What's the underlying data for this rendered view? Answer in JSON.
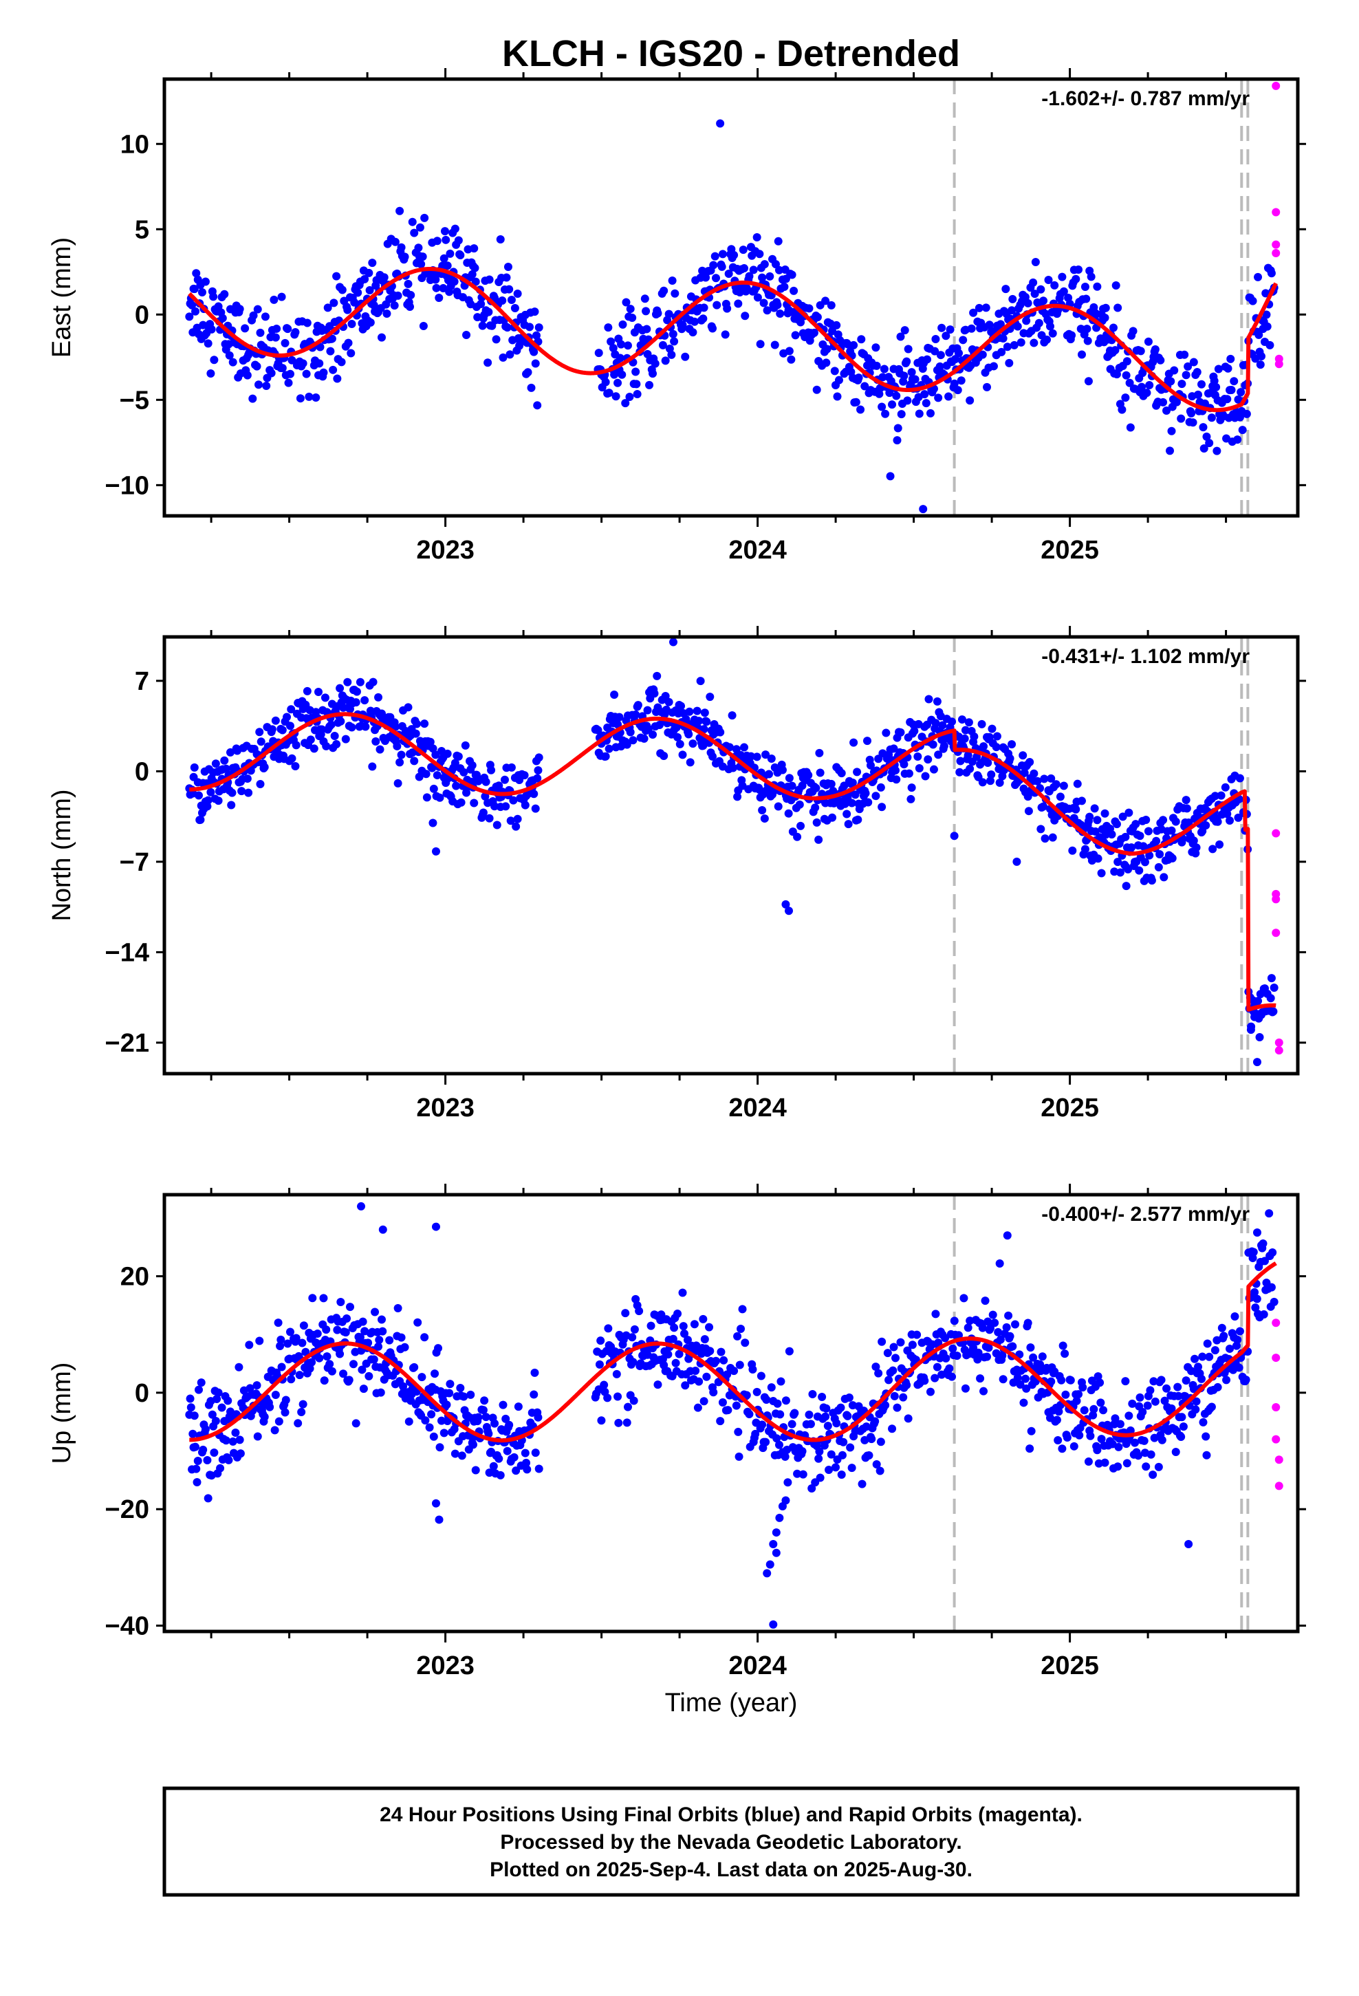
{
  "title": "KLCH - IGS20 - Detrended",
  "xlabel": "Time (year)",
  "colors": {
    "final": "#0000ff",
    "rapid": "#ff00ff",
    "model": "#ff0000",
    "steps": "#bbbbbb"
  },
  "footer": {
    "line1": "24 Hour Positions Using Final Orbits (blue) and Rapid Orbits (magenta).",
    "line2": "Processed by the Nevada Geodetic Laboratory.",
    "line3": "Plotted on 2025-Sep-4. Last data on 2025-Aug-30."
  },
  "chart_data": [
    {
      "type": "scatter",
      "ylabel": "East (mm)",
      "rate_text": "-1.602+/- 0.787 mm/yr",
      "xlim": [
        2022.1,
        2025.73
      ],
      "ylim": [
        -11.8,
        13.8
      ],
      "yticks": [
        -10,
        -5,
        0,
        5,
        10
      ],
      "ytick_labels": [
        "−10",
        "−5",
        "0",
        "5",
        "10"
      ],
      "xticks": [
        2023,
        2024,
        2025
      ],
      "xtick_labels": [
        "2023",
        "2024",
        "2025"
      ],
      "step_epochs": [
        2024.63,
        2025.55,
        2025.57
      ],
      "model": {
        "amp": 2.8,
        "period_peak": 2022.96,
        "base": [
          [
            2022.18,
            0.7
          ],
          [
            2023.4,
            -0.6
          ],
          [
            2024.25,
            -1.1
          ],
          [
            2024.63,
            -2.0
          ],
          [
            2025.3,
            -2.6
          ],
          [
            2025.55,
            -2.9
          ],
          [
            2025.66,
            -0.5
          ]
        ],
        "steps": [
          [
            2025.57,
            3.2
          ]
        ]
      },
      "noise_sd": 1.3,
      "gaps": [
        [
          2023.3,
          2023.48
        ]
      ],
      "outliers": [
        [
          2023.88,
          11.2
        ],
        [
          2024.53,
          -11.4
        ],
        [
          2025.13,
          -3.2
        ]
      ],
      "rapid": [
        [
          2025.66,
          13.4
        ],
        [
          2025.66,
          6.0
        ],
        [
          2025.66,
          4.1
        ],
        [
          2025.66,
          3.6
        ],
        [
          2025.67,
          -2.6
        ],
        [
          2025.67,
          -2.9
        ]
      ]
    },
    {
      "type": "scatter",
      "ylabel": "North (mm)",
      "rate_text": "-0.431+/- 1.102 mm/yr",
      "xlim": [
        2022.1,
        2025.73
      ],
      "ylim": [
        -23.4,
        10.4
      ],
      "yticks": [
        -21,
        -14,
        -7,
        0,
        7
      ],
      "ytick_labels": [
        "−21",
        "−14",
        "−7",
        "0",
        "7"
      ],
      "xticks": [
        2023,
        2024,
        2025
      ],
      "xtick_labels": [
        "2023",
        "2024",
        "2025"
      ],
      "step_epochs": [
        2024.63,
        2025.55,
        2025.57
      ],
      "model": {
        "amp": 3.0,
        "period_peak": 2022.68,
        "base": [
          [
            2022.18,
            1.6
          ],
          [
            2023.3,
            1.2
          ],
          [
            2024.2,
            0.9
          ],
          [
            2024.63,
            0.3
          ],
          [
            2025.2,
            -1.9
          ],
          [
            2025.55,
            -2.2
          ],
          [
            2025.66,
            -2.6
          ]
        ],
        "steps": [
          [
            2024.63,
            -1.5
          ],
          [
            2025.56,
            -3.0
          ],
          [
            2025.57,
            -14.0
          ]
        ]
      },
      "noise_sd": 1.2,
      "gaps": [
        [
          2023.3,
          2023.48
        ]
      ],
      "outliers": [
        [
          2023.73,
          10.0
        ],
        [
          2022.97,
          -6.2
        ],
        [
          2022.96,
          -4.0
        ],
        [
          2024.1,
          -10.8
        ],
        [
          2024.09,
          -10.3
        ],
        [
          2024.63,
          -5.0
        ],
        [
          2024.83,
          -7.0
        ],
        [
          2025.18,
          -7.4
        ],
        [
          2025.58,
          -20.0
        ],
        [
          2025.6,
          -22.5
        ]
      ],
      "rapid": [
        [
          2025.66,
          -4.8
        ],
        [
          2025.66,
          -9.5
        ],
        [
          2025.66,
          -9.9
        ],
        [
          2025.66,
          -12.5
        ],
        [
          2025.67,
          -21.0
        ],
        [
          2025.67,
          -21.6
        ]
      ]
    },
    {
      "type": "scatter",
      "ylabel": "Up (mm)",
      "rate_text": "-0.400+/- 2.577 mm/yr",
      "xlim": [
        2022.1,
        2025.73
      ],
      "ylim": [
        -41,
        34
      ],
      "yticks": [
        -40,
        -20,
        0,
        20
      ],
      "ytick_labels": [
        "−40",
        "−20",
        "0",
        "20"
      ],
      "xticks": [
        2023,
        2024,
        2025
      ],
      "xtick_labels": [
        "2023",
        "2024",
        "2025"
      ],
      "step_epochs": [
        2024.63,
        2025.55,
        2025.57
      ],
      "model": {
        "amp": 8.3,
        "period_peak": 2022.68,
        "base": [
          [
            2022.18,
            0.2
          ],
          [
            2023.3,
            0.1
          ],
          [
            2024.3,
            0.2
          ],
          [
            2024.63,
            1.0
          ],
          [
            2025.2,
            1.0
          ],
          [
            2025.55,
            1.2
          ],
          [
            2025.66,
            4.0
          ]
        ],
        "steps": [
          [
            2025.57,
            10.0
          ]
        ]
      },
      "noise_sd": 4.0,
      "gaps": [
        [
          2023.3,
          2023.48
        ]
      ],
      "outliers": [
        [
          2022.73,
          32.0
        ],
        [
          2022.8,
          28.0
        ],
        [
          2022.97,
          28.5
        ],
        [
          2022.98,
          -21.8
        ],
        [
          2022.97,
          -19.0
        ],
        [
          2024.03,
          -31.0
        ],
        [
          2024.04,
          -29.5
        ],
        [
          2024.05,
          -26.0
        ],
        [
          2024.06,
          -24.0
        ],
        [
          2024.07,
          -21.5
        ],
        [
          2024.08,
          -19.5
        ],
        [
          2024.09,
          -18.5
        ],
        [
          2024.06,
          -27.5
        ],
        [
          2024.05,
          -39.8
        ],
        [
          2024.8,
          27.0
        ],
        [
          2025.38,
          -26.0
        ],
        [
          2025.6,
          27.5
        ],
        [
          2025.64,
          23.5
        ]
      ],
      "rapid": [
        [
          2025.66,
          12.0
        ],
        [
          2025.66,
          6.0
        ],
        [
          2025.66,
          -2.5
        ],
        [
          2025.66,
          -8.0
        ],
        [
          2025.67,
          -11.5
        ],
        [
          2025.67,
          -16.0
        ]
      ]
    }
  ]
}
